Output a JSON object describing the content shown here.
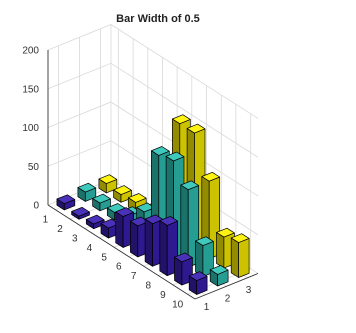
{
  "chart_data": {
    "type": "bar",
    "subtype": "bar3",
    "title": "Bar Width of 0.5",
    "bar_width": 0.5,
    "rows": [
      1,
      2,
      3,
      4,
      5,
      6,
      7,
      8,
      9,
      10
    ],
    "columns": [
      1,
      2,
      3
    ],
    "row_tick_labels": [
      "1",
      "2",
      "3",
      "4",
      "5",
      "6",
      "7",
      "8",
      "9",
      "10"
    ],
    "column_tick_labels": [
      "1",
      "2",
      "3"
    ],
    "zlim": [
      0,
      200
    ],
    "z_ticks": [
      0,
      50,
      100,
      150,
      200
    ],
    "z_tick_labels": [
      "0",
      "50",
      "100",
      "150",
      "200"
    ],
    "grid": true,
    "series": [
      {
        "column": 1,
        "color": "#3a1fb4",
        "values": [
          8,
          4,
          6,
          13,
          40,
          40,
          55,
          65,
          30,
          18
        ]
      },
      {
        "column": 2,
        "color": "#2ec4b6",
        "values": [
          12,
          10,
          10,
          18,
          35,
          120,
          125,
          100,
          40,
          15
        ]
      },
      {
        "column": 3,
        "color": "#fff200",
        "values": [
          12,
          10,
          12,
          12,
          80,
          150,
          150,
          100,
          40,
          45
        ]
      }
    ],
    "xlabel": "",
    "ylabel": "",
    "zlabel": ""
  }
}
